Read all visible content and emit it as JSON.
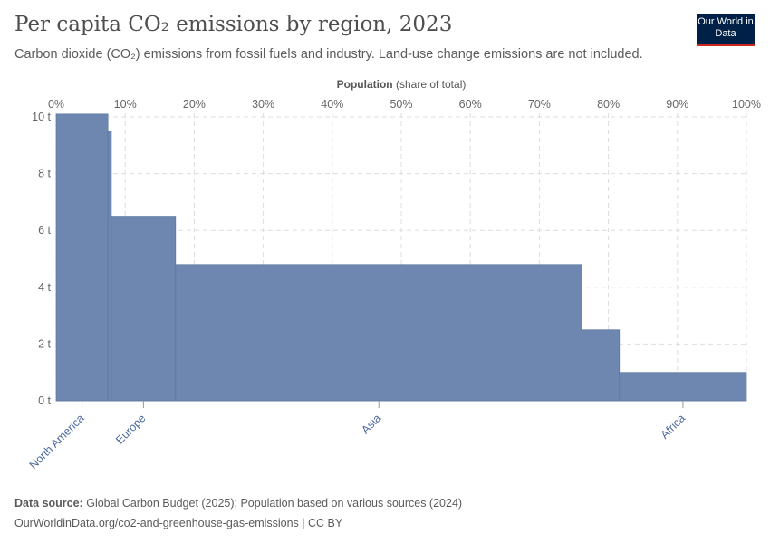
{
  "header": {
    "title": "Per capita CO₂ emissions by region, 2023",
    "subtitle": "Carbon dioxide (CO₂) emissions from fossil fuels and industry. Land-use change emissions are not included.",
    "logo_text": "Our World in Data"
  },
  "footer": {
    "source_label": "Data source:",
    "source_text": "Global Carbon Budget (2025); Population based on various sources (2024)",
    "url_line": "OurWorldinData.org/co2-and-greenhouse-gas-emissions | CC BY"
  },
  "chart_data": {
    "type": "bar",
    "variant": "variable-width (marimekko)",
    "title": "Per capita CO₂ emissions by region, 2023",
    "xlabel_bold": "Population",
    "xlabel_rest": "(share of total)",
    "xlim": [
      0,
      100
    ],
    "ylim": [
      0,
      10
    ],
    "x_ticks": [
      "0%",
      "10%",
      "20%",
      "30%",
      "40%",
      "50%",
      "60%",
      "70%",
      "80%",
      "90%",
      "100%"
    ],
    "y_ticks": [
      "0 t",
      "2 t",
      "4 t",
      "6 t",
      "8 t",
      "10 t"
    ],
    "grid": true,
    "bar_color": "#6d87b0",
    "bars": [
      {
        "category": "North America",
        "start": 0,
        "end": 7.5,
        "value": 10.1,
        "labeled": true
      },
      {
        "category": "",
        "start": 7.5,
        "end": 8.0,
        "value": 9.5,
        "labeled": false
      },
      {
        "category": "Europe",
        "start": 8.0,
        "end": 17.3,
        "value": 6.5,
        "labeled": true
      },
      {
        "category": "Asia",
        "start": 17.3,
        "end": 76.2,
        "value": 4.8,
        "labeled": true
      },
      {
        "category": "",
        "start": 76.2,
        "end": 81.6,
        "value": 2.5,
        "labeled": false
      },
      {
        "category": "Africa",
        "start": 81.6,
        "end": 100,
        "value": 1.0,
        "labeled": true
      }
    ]
  }
}
